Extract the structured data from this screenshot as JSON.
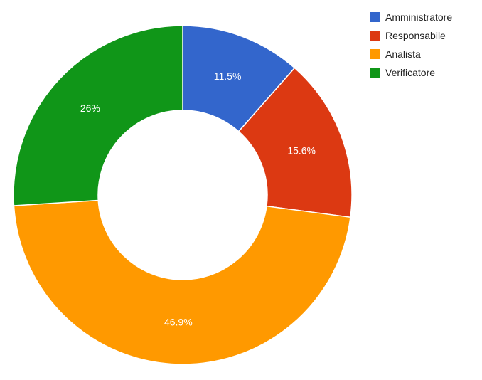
{
  "chart_data": {
    "type": "pie",
    "donut": true,
    "categories": [
      "Amministratore",
      "Responsabile",
      "Analista",
      "Verificatore"
    ],
    "values": [
      11.5,
      15.6,
      46.9,
      26.0
    ],
    "labels": [
      "11.5%",
      "15.6%",
      "46.9%",
      "26%"
    ],
    "colors": [
      "#3366cc",
      "#dc3912",
      "#ff9900",
      "#109618"
    ],
    "legend_position": "right"
  }
}
